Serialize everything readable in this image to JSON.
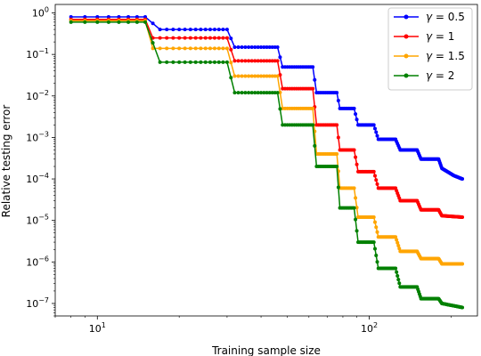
{
  "chart_data": {
    "type": "line",
    "xlabel": "Training sample size",
    "ylabel": "Relative testing error",
    "x_scale": "log",
    "y_scale": "log",
    "xlim": [
      7,
      250
    ],
    "ylim": [
      5e-08,
      1.6
    ],
    "x_ticks": [
      {
        "value": 10,
        "base": "10",
        "exp": "1"
      },
      {
        "value": 100,
        "base": "10",
        "exp": "2"
      }
    ],
    "y_ticks": [
      {
        "value": 1,
        "base": "10",
        "exp": "0"
      },
      {
        "value": 0.1,
        "base": "10",
        "exp": "−1"
      },
      {
        "value": 0.01,
        "base": "10",
        "exp": "−2"
      },
      {
        "value": 0.001,
        "base": "10",
        "exp": "−3"
      },
      {
        "value": 0.0001,
        "base": "10",
        "exp": "−4"
      },
      {
        "value": 1e-05,
        "base": "10",
        "exp": "−5"
      },
      {
        "value": 1e-06,
        "base": "10",
        "exp": "−6"
      },
      {
        "value": 1e-07,
        "base": "10",
        "exp": "−7"
      }
    ],
    "grid": false,
    "legend_position": "top-right",
    "series": [
      {
        "name": "γ = 0.5",
        "legend_symbol": "γ",
        "legend_value": "= 0.5",
        "color": "#0000ff",
        "points": [
          [
            8,
            0.8
          ],
          [
            15,
            0.8
          ],
          [
            17,
            0.4
          ],
          [
            30,
            0.4
          ],
          [
            32,
            0.15
          ],
          [
            46,
            0.15
          ],
          [
            48,
            0.05
          ],
          [
            62,
            0.05
          ],
          [
            64,
            0.012
          ],
          [
            76,
            0.012
          ],
          [
            78,
            0.005
          ],
          [
            88,
            0.005
          ],
          [
            91,
            0.002
          ],
          [
            104,
            0.002
          ],
          [
            108,
            0.0009
          ],
          [
            125,
            0.0009
          ],
          [
            130,
            0.0005
          ],
          [
            150,
            0.0005
          ],
          [
            155,
            0.0003
          ],
          [
            180,
            0.0003
          ],
          [
            185,
            0.00018
          ],
          [
            205,
            0.00012
          ],
          [
            220,
            0.0001
          ]
        ]
      },
      {
        "name": "γ = 1",
        "legend_symbol": "γ",
        "legend_value": "= 1",
        "color": "#ff0000",
        "points": [
          [
            8,
            0.7
          ],
          [
            15,
            0.7
          ],
          [
            16,
            0.25
          ],
          [
            30,
            0.25
          ],
          [
            32,
            0.07
          ],
          [
            46,
            0.07
          ],
          [
            48,
            0.015
          ],
          [
            62,
            0.015
          ],
          [
            64,
            0.002
          ],
          [
            76,
            0.002
          ],
          [
            78,
            0.0005
          ],
          [
            88,
            0.0005
          ],
          [
            91,
            0.00015
          ],
          [
            104,
            0.00015
          ],
          [
            108,
            6e-05
          ],
          [
            125,
            6e-05
          ],
          [
            130,
            3e-05
          ],
          [
            150,
            3e-05
          ],
          [
            155,
            1.8e-05
          ],
          [
            180,
            1.8e-05
          ],
          [
            185,
            1.3e-05
          ],
          [
            220,
            1.2e-05
          ]
        ]
      },
      {
        "name": "γ = 1.5",
        "legend_symbol": "γ",
        "legend_value": "= 1.5",
        "color": "#ffa500",
        "points": [
          [
            8,
            0.65
          ],
          [
            15,
            0.65
          ],
          [
            16,
            0.14
          ],
          [
            30,
            0.14
          ],
          [
            32,
            0.03
          ],
          [
            46,
            0.03
          ],
          [
            48,
            0.005
          ],
          [
            62,
            0.005
          ],
          [
            64,
            0.0004
          ],
          [
            76,
            0.0004
          ],
          [
            78,
            6e-05
          ],
          [
            88,
            6e-05
          ],
          [
            91,
            1.2e-05
          ],
          [
            104,
            1.2e-05
          ],
          [
            108,
            4e-06
          ],
          [
            125,
            4e-06
          ],
          [
            130,
            1.8e-06
          ],
          [
            150,
            1.8e-06
          ],
          [
            155,
            1.2e-06
          ],
          [
            180,
            1.2e-06
          ],
          [
            185,
            9e-07
          ],
          [
            220,
            9e-07
          ]
        ]
      },
      {
        "name": "γ = 2",
        "legend_symbol": "γ",
        "legend_value": "= 2",
        "color": "#008000",
        "points": [
          [
            8,
            0.6
          ],
          [
            15,
            0.6
          ],
          [
            17,
            0.065
          ],
          [
            30,
            0.065
          ],
          [
            32,
            0.012
          ],
          [
            46,
            0.012
          ],
          [
            48,
            0.002
          ],
          [
            62,
            0.002
          ],
          [
            64,
            0.0002
          ],
          [
            76,
            0.0002
          ],
          [
            78,
            2e-05
          ],
          [
            88,
            2e-05
          ],
          [
            91,
            3e-06
          ],
          [
            104,
            3e-06
          ],
          [
            108,
            7e-07
          ],
          [
            125,
            7e-07
          ],
          [
            130,
            2.5e-07
          ],
          [
            150,
            2.5e-07
          ],
          [
            155,
            1.3e-07
          ],
          [
            180,
            1.3e-07
          ],
          [
            185,
            1e-07
          ],
          [
            220,
            8e-08
          ]
        ]
      }
    ]
  }
}
